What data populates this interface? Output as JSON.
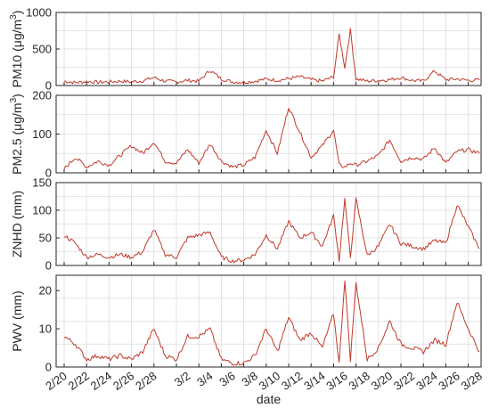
{
  "chart_data": [
    {
      "type": "line",
      "panel": "pm10",
      "ylabel": "PM10 (μg/m",
      "ylabel_sup": "3",
      "ylabel_end": ")",
      "ylim": [
        0,
        1000
      ],
      "yticks": [
        0,
        500,
        1000
      ],
      "grid": true,
      "color": "#c0392b",
      "x": [
        "2/20",
        "2/21",
        "2/22",
        "2/23",
        "2/24",
        "2/25",
        "2/26",
        "2/27",
        "2/28",
        "2/29",
        "3/1",
        "3/2",
        "3/3",
        "3/4",
        "3/5",
        "3/6",
        "3/7",
        "3/8",
        "3/9",
        "3/10",
        "3/11",
        "3/12",
        "3/13",
        "3/14",
        "3/15",
        "3/15.5",
        "3/16",
        "3/16.5",
        "3/17",
        "3/18",
        "3/19",
        "3/20",
        "3/21",
        "3/22",
        "3/23",
        "3/24",
        "3/25",
        "3/26",
        "3/27",
        "3/28"
      ],
      "values": [
        60,
        40,
        55,
        45,
        50,
        60,
        50,
        65,
        110,
        60,
        50,
        70,
        60,
        210,
        90,
        50,
        45,
        60,
        90,
        70,
        95,
        120,
        80,
        60,
        120,
        700,
        250,
        760,
        90,
        60,
        70,
        80,
        110,
        70,
        60,
        200,
        80,
        90,
        70,
        75
      ]
    },
    {
      "type": "line",
      "panel": "pm25",
      "ylabel": "PM2.5 (μg/m",
      "ylabel_sup": "3",
      "ylabel_end": ")",
      "ylim": [
        0,
        200
      ],
      "yticks": [
        0,
        100,
        200
      ],
      "grid": true,
      "color": "#c0392b",
      "x": [
        "2/20",
        "2/21",
        "2/22",
        "2/23",
        "2/24",
        "2/25",
        "2/26",
        "2/27",
        "2/28",
        "2/29",
        "3/1",
        "3/2",
        "3/3",
        "3/4",
        "3/5",
        "3/6",
        "3/7",
        "3/8",
        "3/9",
        "3/10",
        "3/11",
        "3/12",
        "3/13",
        "3/14",
        "3/15",
        "3/15.5",
        "3/16",
        "3/16.5",
        "3/17",
        "3/18",
        "3/19",
        "3/20",
        "3/21",
        "3/22",
        "3/23",
        "3/24",
        "3/25",
        "3/26",
        "3/27",
        "3/28"
      ],
      "values": [
        10,
        40,
        15,
        30,
        20,
        45,
        70,
        50,
        80,
        30,
        25,
        60,
        25,
        75,
        30,
        15,
        20,
        40,
        110,
        50,
        170,
        105,
        40,
        70,
        110,
        20,
        15,
        25,
        20,
        30,
        45,
        85,
        30,
        40,
        35,
        65,
        25,
        55,
        60,
        50
      ]
    },
    {
      "type": "line",
      "panel": "znhd",
      "ylabel": "ZNHD (mm)",
      "ylim": [
        0,
        150
      ],
      "yticks": [
        0,
        50,
        100,
        150
      ],
      "grid": true,
      "color": "#c0392b",
      "x": [
        "2/20",
        "2/21",
        "2/22",
        "2/23",
        "2/24",
        "2/25",
        "2/26",
        "2/27",
        "2/28",
        "2/29",
        "3/1",
        "3/2",
        "3/3",
        "3/4",
        "3/5",
        "3/6",
        "3/7",
        "3/8",
        "3/9",
        "3/10",
        "3/11",
        "3/12",
        "3/13",
        "3/14",
        "3/15",
        "3/15.5",
        "3/16",
        "3/16.5",
        "3/17",
        "3/18",
        "3/19",
        "3/20",
        "3/21",
        "3/22",
        "3/23",
        "3/24",
        "3/25",
        "3/26",
        "3/27",
        "3/28"
      ],
      "values": [
        55,
        40,
        15,
        20,
        15,
        20,
        15,
        25,
        65,
        20,
        15,
        50,
        55,
        60,
        15,
        8,
        10,
        20,
        55,
        30,
        80,
        50,
        60,
        35,
        90,
        10,
        120,
        15,
        120,
        18,
        35,
        75,
        40,
        35,
        30,
        45,
        40,
        110,
        70,
        30
      ]
    },
    {
      "type": "line",
      "panel": "pwv",
      "ylabel": "PWV (mm)",
      "xlabel": "date",
      "ylim": [
        0,
        24
      ],
      "yticks": [
        0,
        10,
        20
      ],
      "grid": true,
      "color": "#c0392b",
      "categories": [
        "2/20",
        "2/22",
        "2/24",
        "2/26",
        "2/28",
        "3/2",
        "3/4",
        "3/6",
        "3/8",
        "3/10",
        "3/12",
        "3/14",
        "3/16",
        "3/18",
        "3/20",
        "3/22",
        "3/24",
        "3/26",
        "3/28"
      ],
      "x": [
        "2/20",
        "2/21",
        "2/22",
        "2/23",
        "2/24",
        "2/25",
        "2/26",
        "2/27",
        "2/28",
        "2/29",
        "3/1",
        "3/2",
        "3/3",
        "3/4",
        "3/5",
        "3/6",
        "3/7",
        "3/8",
        "3/9",
        "3/10",
        "3/11",
        "3/12",
        "3/13",
        "3/14",
        "3/15",
        "3/15.5",
        "3/16",
        "3/16.5",
        "3/17",
        "3/18",
        "3/19",
        "3/20",
        "3/21",
        "3/22",
        "3/23",
        "3/24",
        "3/25",
        "3/26",
        "3/27",
        "3/28"
      ],
      "values": [
        8,
        6,
        2,
        3,
        2,
        3,
        2,
        4,
        10,
        3,
        2,
        8,
        8,
        10,
        2,
        1,
        1,
        3,
        10,
        4,
        13,
        7,
        9,
        5,
        14,
        1,
        23,
        2,
        22,
        2,
        5,
        12,
        6,
        5,
        4,
        7,
        6,
        17,
        10,
        4
      ]
    }
  ]
}
